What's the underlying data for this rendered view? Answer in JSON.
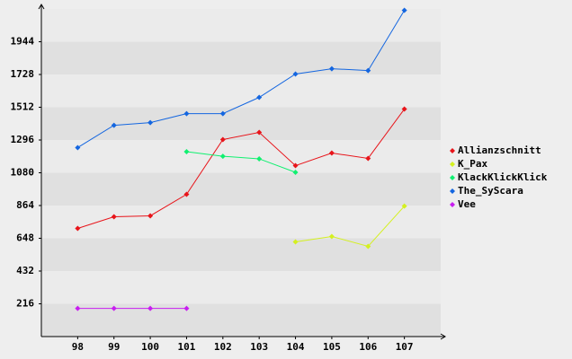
{
  "chart_data": {
    "type": "line",
    "categories": [
      "98",
      "99",
      "100",
      "101",
      "102",
      "103",
      "104",
      "105",
      "106",
      "107"
    ],
    "series": [
      {
        "name": "Allianzschnitt",
        "color": "#e8141a",
        "values": [
          713,
          790,
          796,
          938,
          1299,
          1346,
          1127,
          1210,
          1175,
          1500
        ]
      },
      {
        "name": "K_Pax",
        "color": "#d4f020",
        "values": [
          null,
          null,
          null,
          null,
          null,
          null,
          624,
          660,
          595,
          860
        ]
      },
      {
        "name": "KlackKlickKlick",
        "color": "#10f070",
        "values": [
          null,
          null,
          null,
          1219,
          1189,
          1172,
          1083,
          null,
          null,
          null
        ]
      },
      {
        "name": "The_SyScara",
        "color": "#1466e0",
        "values": [
          1246,
          1393,
          1411,
          1470,
          1470,
          1577,
          1731,
          1766,
          1754,
          2151
        ]
      },
      {
        "name": "Vee",
        "color": "#c81ef0",
        "values": [
          186,
          186,
          186,
          186,
          null,
          null,
          null,
          null,
          null,
          null
        ]
      }
    ],
    "ylim": [
      0,
      2160
    ],
    "yticks": [
      216,
      432,
      648,
      864,
      1080,
      1296,
      1512,
      1728,
      1944
    ]
  }
}
